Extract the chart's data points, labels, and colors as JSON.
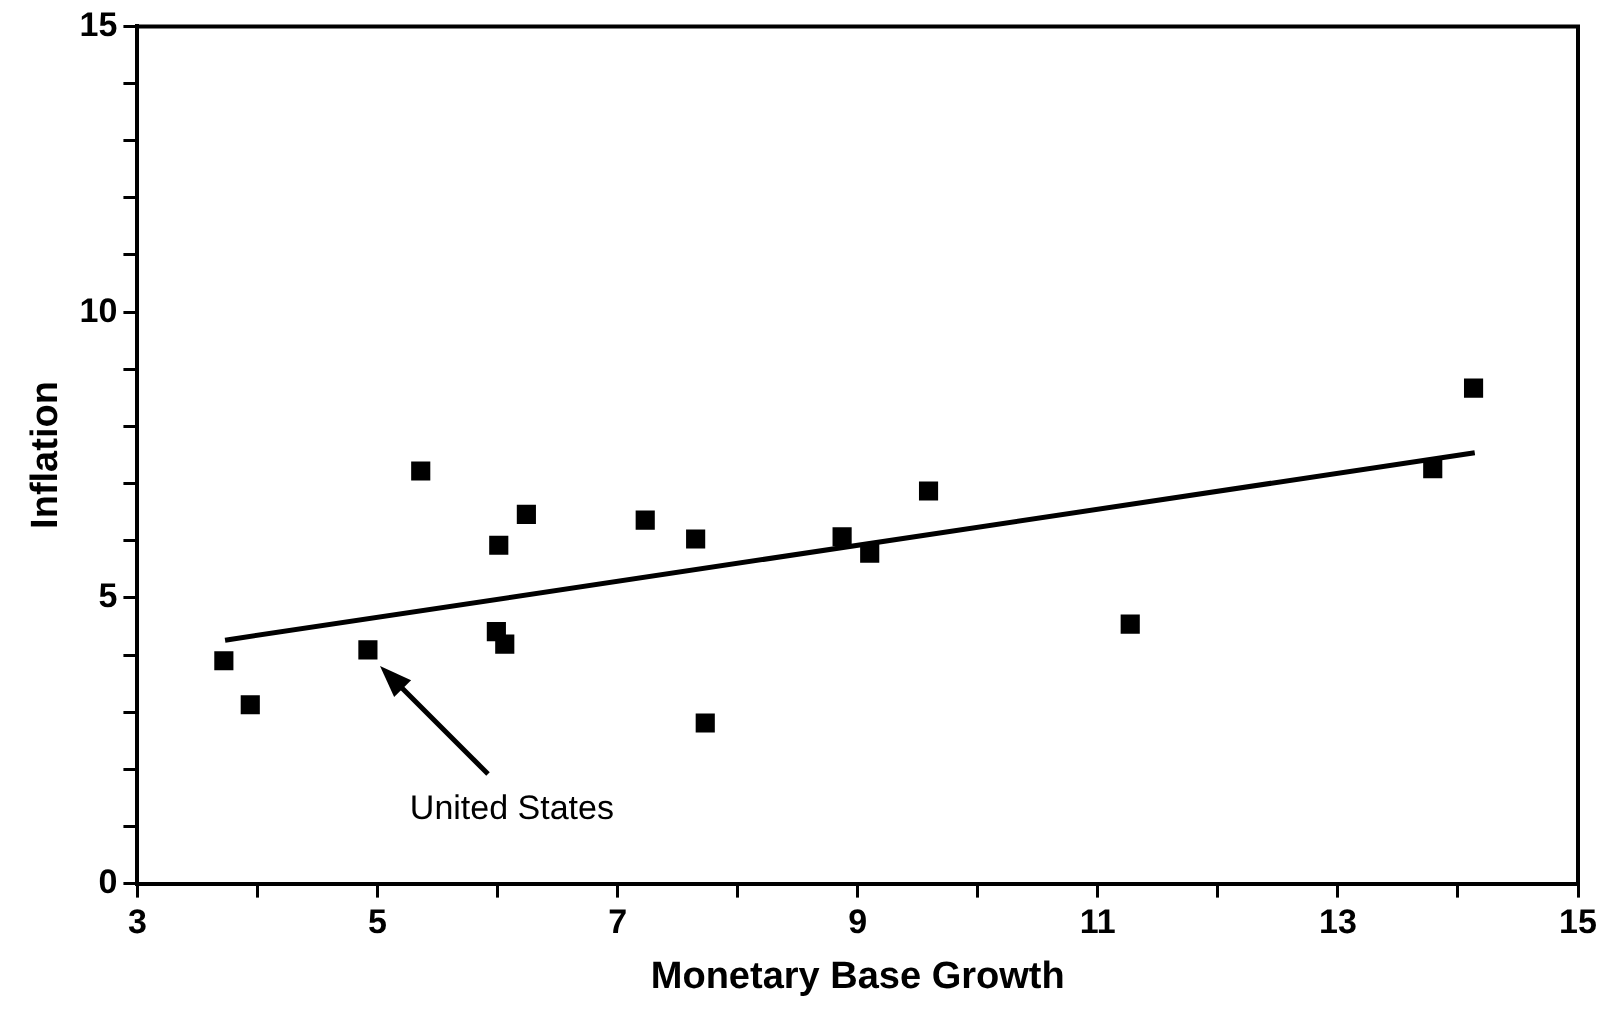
{
  "chart_data": {
    "type": "scatter",
    "xlabel": "Monetary Base Growth",
    "ylabel": "Inflation",
    "xlim": [
      3,
      15
    ],
    "ylim": [
      0,
      15
    ],
    "xticks": [
      3,
      {
        "value": 4,
        "label": null
      },
      5,
      {
        "value": 6,
        "label": null
      },
      7,
      {
        "value": 8,
        "label": null
      },
      9,
      {
        "value": 10,
        "label": null
      },
      11,
      {
        "value": 12,
        "label": null
      },
      13,
      {
        "value": 14,
        "label": null
      },
      15
    ],
    "yticks": [
      0,
      {
        "value": 1,
        "label": null
      },
      {
        "value": 2,
        "label": null
      },
      {
        "value": 3,
        "label": null
      },
      {
        "value": 4,
        "label": null
      },
      5,
      {
        "value": 6,
        "label": null
      },
      {
        "value": 7,
        "label": null
      },
      {
        "value": 8,
        "label": null
      },
      {
        "value": 9,
        "label": null
      },
      10,
      {
        "value": 11,
        "label": null
      },
      {
        "value": 12,
        "label": null
      },
      {
        "value": 13,
        "label": null
      },
      {
        "value": 14,
        "label": null
      },
      15
    ],
    "grid": false,
    "legend": false,
    "marker": "square",
    "series": [
      {
        "type": "scatter",
        "color": "#000000",
        "x": [
          3.72,
          3.94,
          5.36,
          4.92,
          6.01,
          6.24,
          5.99,
          6.06,
          7.23,
          7.65,
          7.73,
          8.87,
          9.1,
          9.59,
          11.27,
          13.79,
          14.13
        ],
        "values": [
          3.9,
          3.13,
          7.22,
          4.09,
          5.92,
          6.46,
          4.41,
          4.19,
          6.36,
          6.03,
          2.81,
          6.07,
          5.78,
          6.87,
          4.54,
          7.26,
          8.67
        ]
      },
      {
        "type": "line",
        "color": "#000000",
        "marker": "none",
        "line_style": "solid",
        "x": [
          3.73,
          14.14
        ],
        "values": [
          4.26,
          7.54
        ]
      }
    ],
    "annotations": [
      "United States"
    ]
  }
}
